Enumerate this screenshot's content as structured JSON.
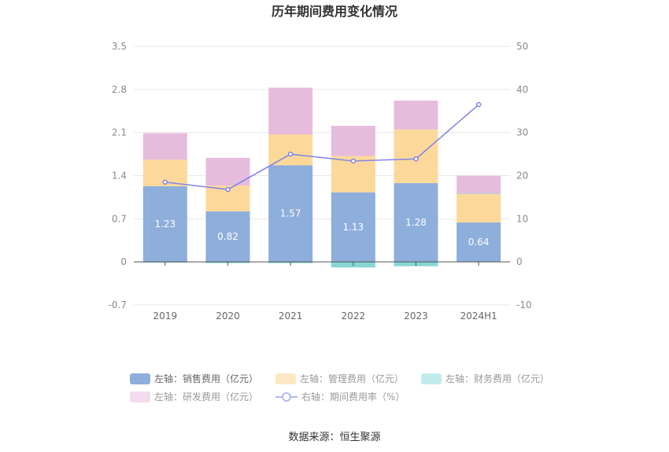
{
  "chart_data": {
    "type": "bar",
    "title": "历年期间费用变化情况",
    "categories": [
      "2019",
      "2020",
      "2021",
      "2022",
      "2023",
      "2024H1"
    ],
    "left_axis": {
      "ticks": [
        "3.5",
        "2.8",
        "2.1",
        "1.4",
        "0.7",
        "0",
        "-0.7"
      ],
      "ylim": [
        -0.7,
        3.5
      ]
    },
    "right_axis": {
      "ticks": [
        "50",
        "40",
        "30",
        "20",
        "10",
        "0",
        "-10"
      ],
      "ylim": [
        -10,
        50
      ]
    },
    "series": [
      {
        "name": "左轴：销售费用（亿元）",
        "type": "bar",
        "axis": "left",
        "color": "#8eaedb",
        "values": [
          1.23,
          0.82,
          1.57,
          1.13,
          1.28,
          0.64
        ],
        "labels": [
          "1.23",
          "0.82",
          "1.57",
          "1.13",
          "1.28",
          "0.64"
        ]
      },
      {
        "name": "左轴：管理费用（亿元）",
        "type": "bar",
        "axis": "left",
        "color": "#fcd99a",
        "values": [
          0.43,
          0.42,
          0.5,
          0.59,
          0.87,
          0.46
        ]
      },
      {
        "name": "左轴：财务费用（亿元）",
        "type": "bar",
        "axis": "left",
        "color": "#86d6d6",
        "values": [
          -0.01,
          -0.02,
          -0.02,
          -0.09,
          -0.07,
          0.01
        ]
      },
      {
        "name": "左轴：研发费用（亿元）",
        "type": "bar",
        "axis": "left",
        "color": "#e6bcdd",
        "values": [
          0.43,
          0.45,
          0.76,
          0.49,
          0.47,
          0.29
        ]
      },
      {
        "name": "右轴：期间费用率（%）",
        "type": "line",
        "axis": "right",
        "color": "#7f84e8",
        "values": [
          18.5,
          16.8,
          25.0,
          23.4,
          23.9,
          36.5
        ]
      }
    ],
    "legend_position": "bottom",
    "grid": true
  },
  "source": "数据来源：恒生聚源"
}
